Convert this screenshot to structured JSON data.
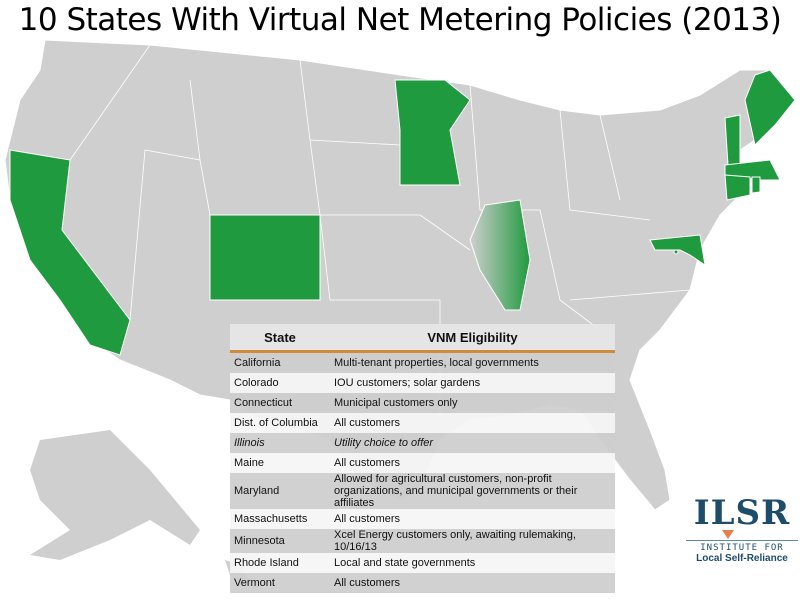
{
  "title": "10 States With Virtual Net Metering Policies (2013)",
  "colors": {
    "policy_state": "#1f9a3e",
    "other_state": "#cfcfcf",
    "table_accent": "#d08a3c",
    "logo": "#1e4d6b",
    "logo_accent": "#e8804a"
  },
  "highlighted_states": [
    "California",
    "Colorado",
    "Connecticut",
    "Dist. of Columbia",
    "Illinois",
    "Maine",
    "Maryland",
    "Massachusetts",
    "Minnesota",
    "Rhode Island",
    "Vermont"
  ],
  "table": {
    "headers": [
      "State",
      "VNM Eligibility"
    ],
    "rows": [
      {
        "state": "California",
        "eligibility": "Multi-tenant properties, local governments"
      },
      {
        "state": "Colorado",
        "eligibility": "IOU customers; solar gardens"
      },
      {
        "state": "Connecticut",
        "eligibility": "Municipal customers only"
      },
      {
        "state": "Dist. of Columbia",
        "eligibility": "All customers"
      },
      {
        "state": "Illinois",
        "eligibility": "Utility choice to offer"
      },
      {
        "state": "Maine",
        "eligibility": "All customers"
      },
      {
        "state": "Maryland",
        "eligibility": "Allowed for agricultural customers, non-profit organizations, and municipal governments or their affiliates"
      },
      {
        "state": "Massachusetts",
        "eligibility": "All customers"
      },
      {
        "state": "Minnesota",
        "eligibility": "Xcel Energy customers only, awaiting rulemaking, 10/16/13"
      },
      {
        "state": "Rhode Island",
        "eligibility": "Local and state governments"
      },
      {
        "state": "Vermont",
        "eligibility": "All customers"
      }
    ]
  },
  "logo": {
    "mark": "ILSR",
    "line1": "INSTITUTE FOR",
    "line2": "Local Self-Reliance"
  }
}
